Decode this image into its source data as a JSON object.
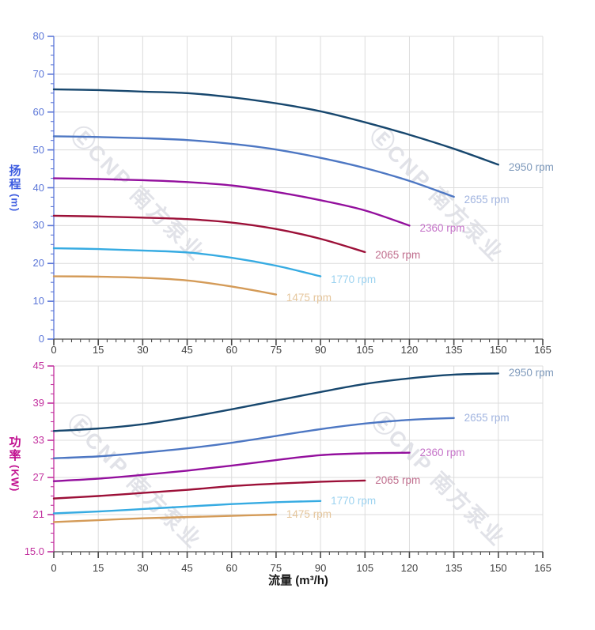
{
  "watermark": {
    "logo": "Ⓔ",
    "text": "CNP 南方泵业",
    "color": "#c9ccd6"
  },
  "chart_data": [
    {
      "id": "head",
      "type": "line",
      "xlim": [
        0,
        165
      ],
      "ylim": [
        0,
        80
      ],
      "x_major": 15,
      "x_minor": 3,
      "y_major": 10,
      "y_minor": 2.5,
      "grid_color": "#dcdcdc",
      "y_axis": {
        "color": "#5b76d8",
        "title_color": "#3d5ce0",
        "title_chars": [
          "扬",
          "程"
        ],
        "title_unit": "(m)"
      },
      "x_axis": {
        "color": "#4a4a4a",
        "label_color": "#3f3f3f"
      },
      "x_ticks": [
        0,
        15,
        30,
        45,
        60,
        75,
        90,
        105,
        120,
        135,
        150,
        165
      ],
      "x_tick_labels": [
        "0",
        "15",
        "30",
        "45",
        "60",
        "75",
        "90",
        "105",
        "120",
        "135",
        "150",
        "165"
      ],
      "y_ticks": [
        0,
        10,
        20,
        30,
        40,
        50,
        60,
        70,
        80
      ],
      "y_tick_labels": [
        "0",
        "10",
        "20",
        "30",
        "40",
        "50",
        "60",
        "70",
        "80"
      ],
      "series": [
        {
          "name": "2950 rpm",
          "color": "#17476e",
          "label_color": "#809bbc",
          "x": [
            0,
            15,
            30,
            45,
            60,
            75,
            90,
            105,
            120,
            135,
            150
          ],
          "values": [
            66,
            65.8,
            65.4,
            65,
            63.9,
            62.3,
            60.2,
            57.3,
            54,
            50.3,
            46.1
          ]
        },
        {
          "name": "2655 rpm",
          "color": "#4d77c3",
          "label_color": "#a2b5e0",
          "x": [
            0,
            15,
            30,
            45,
            60,
            75,
            90,
            105,
            120,
            135
          ],
          "values": [
            53.6,
            53.4,
            53.1,
            52.6,
            51.6,
            50.1,
            47.9,
            45.2,
            41.8,
            37.6
          ]
        },
        {
          "name": "2360 rpm",
          "color": "#930f9d",
          "label_color": "#c573c8",
          "x": [
            0,
            15,
            30,
            45,
            60,
            75,
            90,
            105,
            120
          ],
          "values": [
            42.5,
            42.3,
            42,
            41.5,
            40.6,
            38.9,
            36.7,
            34,
            30
          ]
        },
        {
          "name": "2065 rpm",
          "color": "#9c1038",
          "label_color": "#c1708f",
          "x": [
            0,
            15,
            30,
            45,
            60,
            75,
            90,
            105
          ],
          "values": [
            32.6,
            32.4,
            32.1,
            31.7,
            30.8,
            29.1,
            26.5,
            23
          ]
        },
        {
          "name": "1770 rpm",
          "color": "#36abe2",
          "label_color": "#9dd3f0",
          "x": [
            0,
            15,
            30,
            45,
            60,
            75,
            90
          ],
          "values": [
            24,
            23.8,
            23.4,
            22.9,
            21.5,
            19.4,
            16.6
          ]
        },
        {
          "name": "1475 rpm",
          "color": "#d49b58",
          "label_color": "#e5c69c",
          "x": [
            0,
            15,
            30,
            45,
            60,
            75
          ],
          "values": [
            16.6,
            16.5,
            16.2,
            15.5,
            13.9,
            11.8
          ]
        }
      ]
    },
    {
      "id": "power",
      "type": "line",
      "xlim": [
        0,
        165
      ],
      "ylim": [
        15,
        45
      ],
      "x_major": 15,
      "x_minor": 3,
      "y_major": 6,
      "y_minor": 1.5,
      "grid_color": "#dcdcdc",
      "xlabel": "流量 (m³/h)",
      "y_axis": {
        "color": "#c2309e",
        "title_color": "#c00d8f",
        "title_chars": [
          "功",
          "率"
        ],
        "title_unit": "(KW)"
      },
      "x_axis": {
        "color": "#4a4a4a",
        "label_color": "#3f3f3f",
        "title_color": "#191919"
      },
      "x_ticks": [
        0,
        15,
        30,
        45,
        60,
        75,
        90,
        105,
        120,
        135,
        150,
        165
      ],
      "x_tick_labels": [
        "0",
        "15",
        "30",
        "45",
        "60",
        "75",
        "90",
        "105",
        "120",
        "135",
        "150",
        "165"
      ],
      "y_ticks": [
        15,
        21,
        27,
        33,
        39,
        45
      ],
      "y_tick_labels": [
        "15.0",
        "21",
        "27",
        "33",
        "39",
        "45"
      ],
      "series": [
        {
          "name": "2950 rpm",
          "color": "#17476e",
          "label_color": "#809bbc",
          "x": [
            0,
            15,
            30,
            45,
            60,
            75,
            90,
            105,
            120,
            135,
            150
          ],
          "values": [
            34.5,
            34.9,
            35.6,
            36.7,
            38,
            39.4,
            40.8,
            42.1,
            43,
            43.6,
            43.8
          ]
        },
        {
          "name": "2655 rpm",
          "color": "#4d77c3",
          "label_color": "#a2b5e0",
          "x": [
            0,
            15,
            30,
            45,
            60,
            75,
            90,
            105,
            120,
            135
          ],
          "values": [
            30.1,
            30.4,
            31,
            31.7,
            32.6,
            33.7,
            34.8,
            35.7,
            36.3,
            36.6
          ]
        },
        {
          "name": "2360 rpm",
          "color": "#930f9d",
          "label_color": "#c573c8",
          "x": [
            0,
            15,
            30,
            45,
            60,
            75,
            90,
            105,
            120
          ],
          "values": [
            26.4,
            26.8,
            27.4,
            28.1,
            28.9,
            29.8,
            30.6,
            30.9,
            31
          ]
        },
        {
          "name": "2065 rpm",
          "color": "#9c1038",
          "label_color": "#c1708f",
          "x": [
            0,
            15,
            30,
            45,
            60,
            75,
            90,
            105
          ],
          "values": [
            23.6,
            24,
            24.5,
            25,
            25.6,
            26,
            26.3,
            26.5
          ]
        },
        {
          "name": "1770 rpm",
          "color": "#36abe2",
          "label_color": "#9dd3f0",
          "x": [
            0,
            15,
            30,
            45,
            60,
            75,
            90
          ],
          "values": [
            21.2,
            21.5,
            21.9,
            22.3,
            22.7,
            23,
            23.2
          ]
        },
        {
          "name": "1475 rpm",
          "color": "#d49b58",
          "label_color": "#e5c69c",
          "x": [
            0,
            15,
            30,
            45,
            60,
            75
          ],
          "values": [
            19.8,
            20.1,
            20.4,
            20.6,
            20.8,
            21
          ]
        }
      ]
    }
  ]
}
